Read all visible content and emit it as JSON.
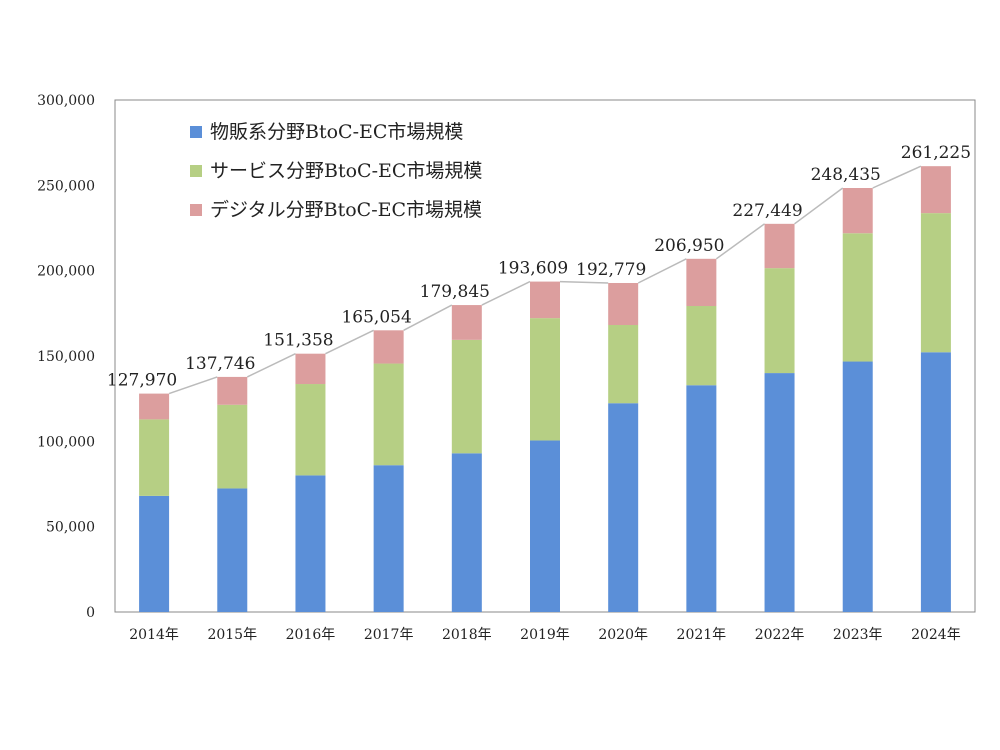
{
  "chart_data": {
    "type": "bar",
    "stacked": true,
    "categories": [
      "2014年",
      "2015年",
      "2016年",
      "2017年",
      "2018年",
      "2019年",
      "2020年",
      "2021年",
      "2022年",
      "2023年",
      "2024年"
    ],
    "series": [
      {
        "name": "物販系分野BtoC-EC市場規模",
        "color": "#5b8fd8",
        "values": [
          68043,
          72398,
          80043,
          86008,
          92992,
          100515,
          122333,
          132865,
          139997,
          146760,
          152194
        ]
      },
      {
        "name": "サービス分野BtoC-EC市場規模",
        "color": "#b6cf84",
        "values": [
          44816,
          49014,
          53532,
          59568,
          66471,
          71672,
          45832,
          46424,
          61477,
          75169,
          81522
        ]
      },
      {
        "name": "デジタル分野BtoC-EC市場規模",
        "color": "#dc9e9e",
        "values": [
          15111,
          16334,
          17782,
          19478,
          20382,
          21422,
          24614,
          27661,
          25974,
          26506,
          27509
        ]
      }
    ],
    "totals": [
      127970,
      137746,
      151358,
      165054,
      179845,
      193609,
      192779,
      206950,
      227449,
      248435,
      261225
    ],
    "total_labels": [
      "127,970",
      "137,746",
      "151,358",
      "165,054",
      "179,845",
      "193,609",
      "192,779",
      "206,950",
      "227,449",
      "248,435",
      "261,225"
    ],
    "ylim": [
      0,
      300000
    ],
    "yticks": [
      "0",
      "50,000",
      "100,000",
      "150,000",
      "200,000",
      "250,000",
      "300,000"
    ],
    "ytick_values": [
      0,
      50000,
      100000,
      150000,
      200000,
      250000,
      300000
    ],
    "legend_position": "top-left",
    "grid": false,
    "total_line_color": "#bbbbbb"
  }
}
